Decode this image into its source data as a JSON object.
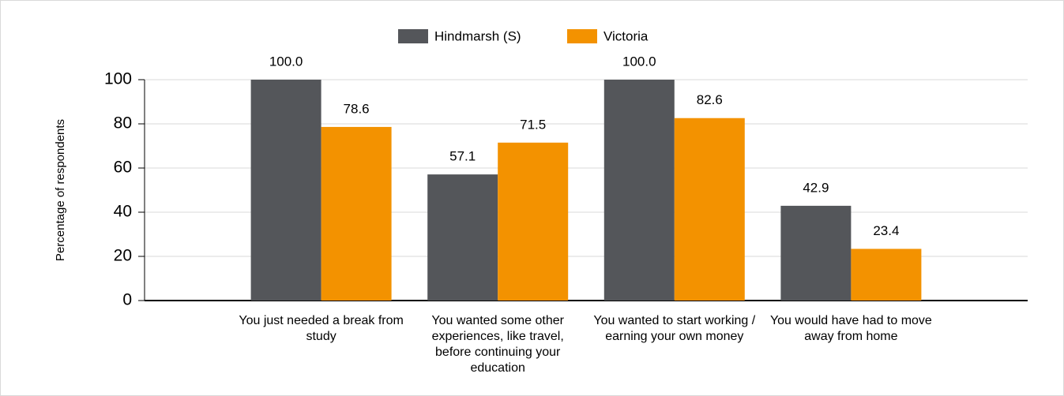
{
  "chart_data": {
    "type": "bar",
    "y_label": "Percentage of respondents",
    "categories": [
      "You just needed a break from study",
      "You wanted some other experiences, like travel, before continuing your education",
      "You wanted to start working / earning your own money",
      "You would have had to move away from home"
    ],
    "series": [
      {
        "name": "Hindmarsh (S)",
        "color": "#54565a",
        "values": [
          100,
          57.1,
          100,
          42.9
        ],
        "value_labels": [
          "100.0",
          "57.1",
          "100.0",
          "42.9"
        ]
      },
      {
        "name": "Victoria",
        "color": "#f39200",
        "values": [
          78.6,
          71.5,
          82.6,
          23.4
        ],
        "value_labels": [
          "78.6",
          "71.5",
          "82.6",
          "23.4"
        ]
      }
    ],
    "ylim": [
      0,
      100
    ],
    "yticks": [
      0,
      20,
      40,
      60,
      80,
      100
    ],
    "grid": true,
    "legend": "top"
  }
}
